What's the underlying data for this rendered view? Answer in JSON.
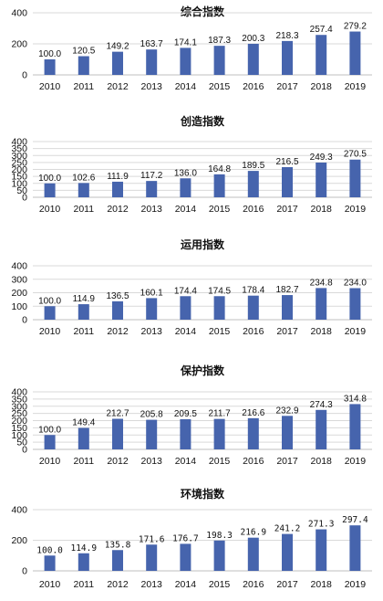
{
  "chart_data": [
    {
      "type": "bar",
      "title": "综合指数",
      "categories": [
        "2010",
        "2011",
        "2012",
        "2013",
        "2014",
        "2015",
        "2016",
        "2017",
        "2018",
        "2019"
      ],
      "values": [
        100.0,
        120.5,
        149.2,
        163.7,
        174.1,
        187.3,
        200.3,
        218.3,
        257.4,
        279.2
      ],
      "value_labels": [
        "100.0",
        "120.5",
        "149.2",
        "163.7",
        "174.1",
        "187.3",
        "200.3",
        "218.3",
        "257.4",
        "279.2"
      ],
      "yticks": [
        "0",
        "200",
        "400"
      ],
      "ylim": [
        0,
        400
      ],
      "grid": true,
      "bar_color": "#4664ad"
    },
    {
      "type": "bar",
      "title": "创造指数",
      "categories": [
        "2010",
        "2011",
        "2012",
        "2013",
        "2014",
        "2015",
        "2016",
        "2017",
        "2018",
        "2019"
      ],
      "values": [
        100.0,
        102.6,
        111.9,
        117.2,
        136.0,
        164.8,
        189.5,
        216.5,
        249.3,
        270.5
      ],
      "value_labels": [
        "100.0",
        "102.6",
        "111.9",
        "117.2",
        "136.0",
        "164.8",
        "189.5",
        "216.5",
        "249.3",
        "270.5"
      ],
      "yticks": [
        "0",
        "50",
        "100",
        "150",
        "200",
        "250",
        "300",
        "350",
        "400"
      ],
      "ylim": [
        0,
        400
      ],
      "grid": true,
      "bar_color": "#4664ad"
    },
    {
      "type": "bar",
      "title": "运用指数",
      "categories": [
        "2010",
        "2011",
        "2012",
        "2013",
        "2014",
        "2015",
        "2016",
        "2017",
        "2018",
        "2019"
      ],
      "values": [
        100.0,
        114.9,
        136.5,
        160.1,
        174.4,
        174.5,
        178.4,
        182.7,
        234.8,
        234.0
      ],
      "value_labels": [
        "100.0",
        "114.9",
        "136.5",
        "160.1",
        "174.4",
        "174.5",
        "178.4",
        "182.7",
        "234.8",
        "234.0"
      ],
      "yticks": [
        "0",
        "100",
        "200",
        "300",
        "400"
      ],
      "ylim": [
        0,
        400
      ],
      "grid": true,
      "bar_color": "#4664ad"
    },
    {
      "type": "bar",
      "title": "保护指数",
      "categories": [
        "2010",
        "2011",
        "2012",
        "2013",
        "2014",
        "2015",
        "2016",
        "2017",
        "2018",
        "2019"
      ],
      "values": [
        100.0,
        149.4,
        212.7,
        205.8,
        209.5,
        211.7,
        216.6,
        232.9,
        274.3,
        314.8
      ],
      "value_labels": [
        "100.0",
        "149.4",
        "212.7",
        "205.8",
        "209.5",
        "211.7",
        "216.6",
        "232.9",
        "274.3",
        "314.8"
      ],
      "yticks": [
        "0",
        "50",
        "100",
        "150",
        "200",
        "250",
        "300",
        "350",
        "400"
      ],
      "ylim": [
        0,
        400
      ],
      "grid": true,
      "bar_color": "#4664ad"
    },
    {
      "type": "bar",
      "title": "环境指数",
      "categories": [
        "2010",
        "2011",
        "2012",
        "2013",
        "2014",
        "2015",
        "2016",
        "2017",
        "2018",
        "2019"
      ],
      "values": [
        100.0,
        114.9,
        135.8,
        171.6,
        176.7,
        198.3,
        216.9,
        241.2,
        271.3,
        297.4
      ],
      "value_labels": [
        "100.0",
        "114.9",
        "135.8",
        "171.6",
        "176.7",
        "198.3",
        "216.9",
        "241.2",
        "271.3",
        "297.4"
      ],
      "yticks": [
        "0",
        "200",
        "400"
      ],
      "ylim": [
        0,
        400
      ],
      "grid": true,
      "bar_color": "#4664ad"
    }
  ]
}
